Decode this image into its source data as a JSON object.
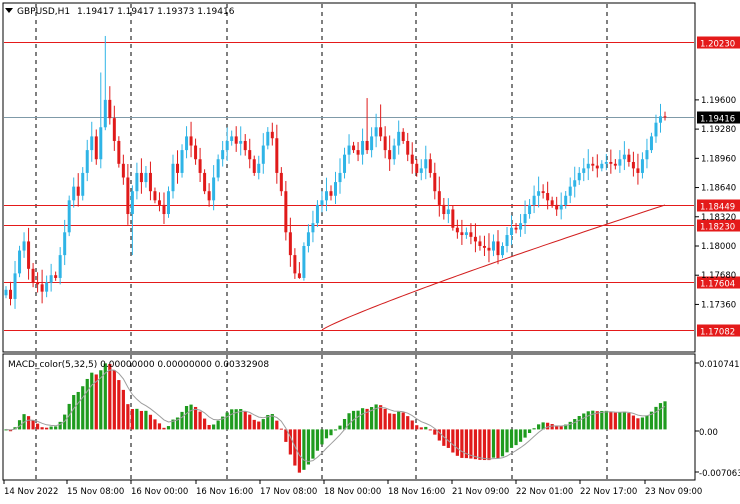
{
  "header": {
    "symbol_tf": "GBPUSD,H1",
    "ohlc": "1.19417 1.19417 1.19373 1.19416"
  },
  "macd_header": "MACD_color(5,32,5) 0.00000000 0.00000000 0.00332908",
  "colors": {
    "bull": "#2fb4e6",
    "bear": "#e01a1a",
    "hline": "#e41a1a",
    "ma": "#d21e1e",
    "macd_pos": "#1f9b1f",
    "macd_neg": "#e01a1a",
    "signal": "#9e9e9e",
    "grid": "#000000",
    "bid_line": "#7f9aa8"
  },
  "chart_data": [
    {
      "type": "candlestick",
      "ylim": [
        1.1685,
        1.2065
      ],
      "price_axis": {
        "ticks": [
          "1.19600",
          "1.19280",
          "1.18960",
          "1.18640",
          "1.18320",
          "1.18000",
          "1.17680",
          "1.17360"
        ]
      },
      "hlines": [
        {
          "value": 1.2023,
          "label": "1.20230"
        },
        {
          "value": 1.18449,
          "label": "1.18449"
        },
        {
          "value": 1.1823,
          "label": "1.18230"
        },
        {
          "value": 1.17604,
          "label": "1.17604"
        },
        {
          "value": 1.17082,
          "label": "1.17082"
        }
      ],
      "current_price": {
        "value": 1.19416,
        "label": "1.19416"
      },
      "time_axis": [
        "14 Nov 2022",
        "15 Nov 08:00",
        "16 Nov 00:00",
        "16 Nov 16:00",
        "17 Nov 08:00",
        "18 Nov 00:00",
        "18 Nov 16:00",
        "21 Nov 09:00",
        "22 Nov 01:00",
        "22 Nov 17:00",
        "23 Nov 09:00"
      ],
      "closes": [
        1.1752,
        1.1742,
        1.177,
        1.1795,
        1.1805,
        1.1775,
        1.176,
        1.1758,
        1.175,
        1.176,
        1.1768,
        1.1765,
        1.179,
        1.1815,
        1.185,
        1.1865,
        1.1855,
        1.188,
        1.1905,
        1.192,
        1.1895,
        1.193,
        1.196,
        1.194,
        1.1915,
        1.189,
        1.1875,
        1.1835,
        1.186,
        1.188,
        1.187,
        1.188,
        1.186,
        1.185,
        1.1845,
        1.1835,
        1.186,
        1.189,
        1.188,
        1.1905,
        1.192,
        1.191,
        1.1895,
        1.188,
        1.186,
        1.185,
        1.1875,
        1.1895,
        1.1905,
        1.1915,
        1.192,
        1.1912,
        1.1915,
        1.1905,
        1.1895,
        1.188,
        1.189,
        1.191,
        1.1925,
        1.1918,
        1.188,
        1.186,
        1.1815,
        1.179,
        1.177,
        1.1765,
        1.18,
        1.1815,
        1.1825,
        1.1845,
        1.185,
        1.186,
        1.1855,
        1.187,
        1.188,
        1.19,
        1.191,
        1.1905,
        1.19,
        1.1915,
        1.1905,
        1.192,
        1.193,
        1.192,
        1.1905,
        1.1895,
        1.191,
        1.1925,
        1.1915,
        1.19,
        1.189,
        1.188,
        1.1885,
        1.1895,
        1.188,
        1.186,
        1.1845,
        1.1835,
        1.184,
        1.182,
        1.1815,
        1.1812,
        1.1815,
        1.181,
        1.1805,
        1.18,
        1.1798,
        1.1795,
        1.1805,
        1.179,
        1.18,
        1.1812,
        1.182,
        1.1818,
        1.1825,
        1.1835,
        1.1845,
        1.1855,
        1.186,
        1.1858,
        1.185,
        1.1845,
        1.184,
        1.1845,
        1.1855,
        1.1865,
        1.1872,
        1.188,
        1.1885,
        1.189,
        1.1888,
        1.1885,
        1.189,
        1.1892,
        1.189,
        1.1888,
        1.1895,
        1.19,
        1.1892,
        1.1885,
        1.188,
        1.1895,
        1.1905,
        1.192,
        1.1935,
        1.1942,
        1.19416
      ]
    },
    {
      "type": "histogram",
      "title": "MACD_color(5,32,5)",
      "ylim": [
        -0.0074,
        0.0111
      ],
      "axis_ticks": [
        "0.0107413",
        "0.00",
        "-0.007063"
      ]
    }
  ]
}
